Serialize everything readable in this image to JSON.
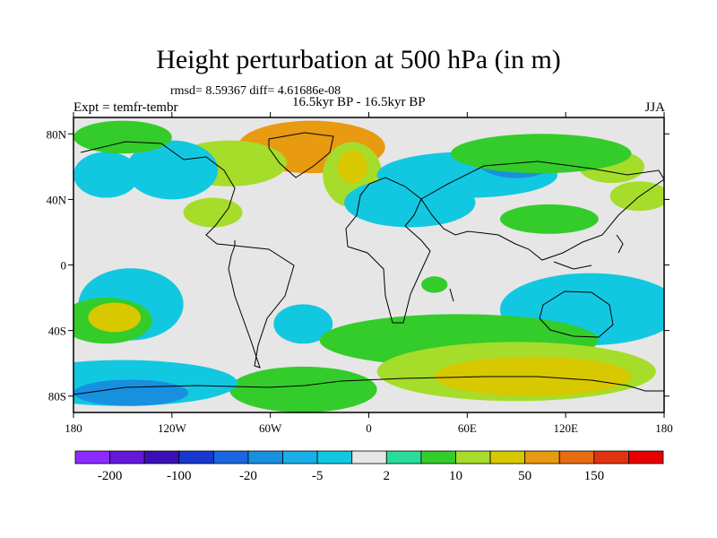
{
  "title": "Height perturbation at 500 hPa (in m)",
  "stats": "rmsd= 8.59367 diff= 4.61686e-08",
  "period": "16.5kyr BP - 16.5kyr BP",
  "experiment": "Expt = temfr-tembr",
  "season": "JJA",
  "chart_data": {
    "type": "heatmap",
    "projection": "cylindrical equidistant map",
    "x_axis": {
      "range": [
        -180,
        180
      ],
      "ticks": [
        -180,
        -120,
        -60,
        0,
        60,
        120,
        180
      ],
      "tick_labels": [
        "180",
        "120W",
        "60W",
        "0",
        "60E",
        "120E",
        "180"
      ]
    },
    "y_axis": {
      "range": [
        -90,
        90
      ],
      "ticks": [
        80,
        40,
        0,
        -40,
        -80
      ],
      "tick_labels": [
        "80N",
        "40N",
        "0",
        "40S",
        "80S"
      ]
    },
    "colorbar": {
      "levels": [
        -200,
        -150,
        -100,
        -50,
        -20,
        -10,
        -5,
        -2,
        2,
        5,
        10,
        20,
        50,
        100,
        150,
        200
      ],
      "printed_labels": [
        {
          "level": -200,
          "text": "-200"
        },
        {
          "level": -100,
          "text": "-100"
        },
        {
          "level": -20,
          "text": "-20"
        },
        {
          "level": -5,
          "text": "-5"
        },
        {
          "level": 2,
          "text": "2"
        },
        {
          "level": 10,
          "text": "10"
        },
        {
          "level": 50,
          "text": "50"
        },
        {
          "level": 150,
          "text": "150"
        }
      ],
      "colors": [
        "#8c2cff",
        "#6418d8",
        "#3a10b4",
        "#1838d0",
        "#1a66e0",
        "#1890e0",
        "#1aaee8",
        "#12c8e0",
        "#e6e6e6",
        "#2adc9c",
        "#34cc2a",
        "#a6dc2a",
        "#d8c800",
        "#e89a10",
        "#e86c10",
        "#e03410",
        "#e80000"
      ]
    },
    "anomalies": [
      {
        "lon": -35,
        "lat": 72,
        "rx": 45,
        "ry": 16,
        "level": 50
      },
      {
        "lon": -85,
        "lat": 62,
        "rx": 35,
        "ry": 14,
        "level": 10
      },
      {
        "lon": -95,
        "lat": 32,
        "rx": 18,
        "ry": 9,
        "level": 10
      },
      {
        "lon": -120,
        "lat": 58,
        "rx": 28,
        "ry": 18,
        "level": -5
      },
      {
        "lon": -160,
        "lat": 55,
        "rx": 20,
        "ry": 14,
        "level": -5
      },
      {
        "lon": -150,
        "lat": 78,
        "rx": 30,
        "ry": 10,
        "level": 5
      },
      {
        "lon": -10,
        "lat": 55,
        "rx": 18,
        "ry": 20,
        "level": 10
      },
      {
        "lon": -10,
        "lat": 60,
        "rx": 9,
        "ry": 10,
        "level": 20
      },
      {
        "lon": 25,
        "lat": 38,
        "rx": 40,
        "ry": 15,
        "level": -5
      },
      {
        "lon": 60,
        "lat": 55,
        "rx": 55,
        "ry": 14,
        "level": -5
      },
      {
        "lon": 90,
        "lat": 65,
        "rx": 25,
        "ry": 12,
        "level": -20
      },
      {
        "lon": 148,
        "lat": 60,
        "rx": 20,
        "ry": 10,
        "level": 10
      },
      {
        "lon": 165,
        "lat": 42,
        "rx": 18,
        "ry": 9,
        "level": 10
      },
      {
        "lon": 110,
        "lat": 28,
        "rx": 30,
        "ry": 9,
        "level": 5
      },
      {
        "lon": 105,
        "lat": 68,
        "rx": 55,
        "ry": 12,
        "level": 5
      },
      {
        "lon": 135,
        "lat": -27,
        "rx": 55,
        "ry": 22,
        "level": -5
      },
      {
        "lon": -145,
        "lat": -24,
        "rx": 32,
        "ry": 22,
        "level": -5
      },
      {
        "lon": -160,
        "lat": -34,
        "rx": 28,
        "ry": 14,
        "level": 5
      },
      {
        "lon": -155,
        "lat": -32,
        "rx": 16,
        "ry": 9,
        "level": 20
      },
      {
        "lon": -40,
        "lat": -36,
        "rx": 18,
        "ry": 12,
        "level": -5
      },
      {
        "lon": 55,
        "lat": -46,
        "rx": 85,
        "ry": 16,
        "level": 5
      },
      {
        "lon": 90,
        "lat": -65,
        "rx": 85,
        "ry": 18,
        "level": 10
      },
      {
        "lon": 100,
        "lat": -68,
        "rx": 60,
        "ry": 12,
        "level": 20
      },
      {
        "lon": -40,
        "lat": -76,
        "rx": 45,
        "ry": 14,
        "level": 5
      },
      {
        "lon": -150,
        "lat": -72,
        "rx": 70,
        "ry": 14,
        "level": -5
      },
      {
        "lon": -145,
        "lat": -78,
        "rx": 35,
        "ry": 8,
        "level": -20
      },
      {
        "lon": 40,
        "lat": -12,
        "rx": 8,
        "ry": 5,
        "level": 5
      }
    ]
  }
}
